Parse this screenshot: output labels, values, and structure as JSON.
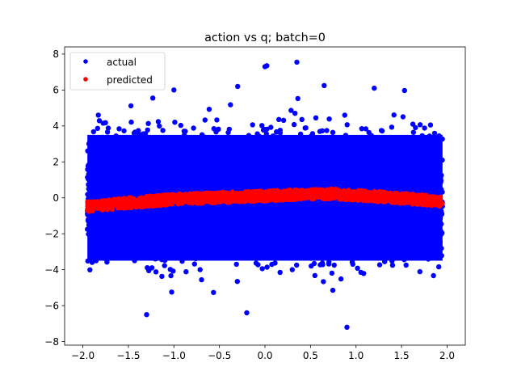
{
  "chart_data": {
    "type": "scatter",
    "title": "action vs q; batch=0",
    "xlabel": "",
    "ylabel": "",
    "xlim": [
      -2.2,
      2.2
    ],
    "ylim": [
      -8.2,
      8.4
    ],
    "x_ticks": [
      -2.0,
      -1.5,
      -1.0,
      -0.5,
      0.0,
      0.5,
      1.0,
      1.5,
      2.0
    ],
    "x_tick_labels": [
      "−2.0",
      "−1.5",
      "−1.0",
      "−0.5",
      "0.0",
      "0.5",
      "1.0",
      "1.5",
      "2.0"
    ],
    "y_ticks": [
      -8,
      -6,
      -4,
      -2,
      0,
      2,
      4,
      6,
      8
    ],
    "y_tick_labels": [
      "−8",
      "−6",
      "−4",
      "−2",
      "0",
      "2",
      "4",
      "6",
      "8"
    ],
    "grid": false,
    "legend_position": "top-left",
    "series": [
      {
        "name": "actual",
        "color": "#0000ff",
        "x_range": [
          -1.95,
          1.95
        ],
        "core_band": [
          -3.5,
          3.5
        ],
        "notable_points": [
          {
            "x": 0.0,
            "y": 7.3
          },
          {
            "x": 0.35,
            "y": 7.55
          },
          {
            "x": 0.02,
            "y": 7.35
          },
          {
            "x": 0.65,
            "y": 6.25
          },
          {
            "x": 0.9,
            "y": -7.2
          },
          {
            "x": -1.3,
            "y": -6.5
          },
          {
            "x": -0.2,
            "y": -6.4
          },
          {
            "x": 1.2,
            "y": 6.1
          },
          {
            "x": -1.0,
            "y": 6.0
          },
          {
            "x": -0.3,
            "y": 6.2
          }
        ]
      },
      {
        "name": "predicted",
        "color": "#ff0000",
        "x": [
          -1.95,
          -1.5,
          -1.0,
          -0.5,
          0.0,
          0.5,
          0.7,
          1.0,
          1.5,
          1.95
        ],
        "y": [
          -0.5,
          -0.28,
          -0.08,
          0.02,
          0.1,
          0.2,
          0.22,
          0.15,
          -0.02,
          -0.2
        ],
        "band_halfwidth": 0.28
      }
    ]
  }
}
